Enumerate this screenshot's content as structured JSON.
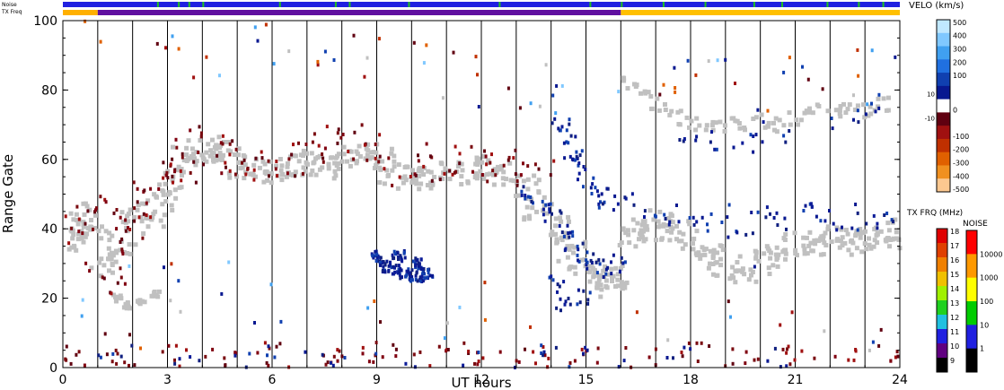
{
  "chart_data": {
    "type": "heatmap",
    "title": "",
    "xlabel": "UT hours",
    "ylabel": "Range Gate",
    "xlim": [
      0,
      24
    ],
    "ylim": [
      0,
      100
    ],
    "x_ticks": [
      "0",
      "3",
      "6",
      "9",
      "12",
      "15",
      "18",
      "21",
      "24"
    ],
    "x_tick_values": [
      0,
      3,
      6,
      9,
      12,
      15,
      18,
      21,
      24
    ],
    "y_ticks": [
      "0",
      "20",
      "40",
      "60",
      "80",
      "100"
    ],
    "y_tick_values": [
      0,
      20,
      40,
      60,
      80,
      100
    ],
    "vertical_gridlines_hours": [
      1,
      2,
      3,
      4,
      5,
      6,
      7,
      8,
      9,
      10,
      11,
      12,
      13,
      14,
      15,
      16,
      17,
      18,
      19,
      20,
      21,
      22,
      23
    ],
    "ground_scatter_color": "#c0c0c0",
    "noise_bar_label": "Noise",
    "txfreq_bar_label": "TX Freq",
    "noise_bar": {
      "base_color": "#2020e0",
      "accent_color": "#20c020",
      "accent_hours": [
        2.7,
        3.3,
        3.6,
        4.0,
        6.2,
        7.8,
        8.2,
        9.9,
        12.5,
        15.1,
        16.0,
        17.2,
        18.4,
        19.8,
        20.6,
        21.9,
        22.8,
        23.5
      ]
    },
    "txfreq_bar": {
      "segments": [
        {
          "start": 0,
          "end": 1,
          "color": "#ffb000"
        },
        {
          "start": 1,
          "end": 16,
          "color": "#6010a0"
        },
        {
          "start": 16,
          "end": 24,
          "color": "#ffc000"
        }
      ]
    },
    "velocity_scale": {
      "title": "VELO (km/s)",
      "labels": [
        "500",
        "400",
        "300",
        "200",
        "100",
        "10",
        "0",
        "-10",
        "-100",
        "-200",
        "-300",
        "-400",
        "-500"
      ],
      "colors": [
        "#c0e8ff",
        "#80c8ff",
        "#40a0f0",
        "#2070e0",
        "#1040b0",
        "#081890",
        "#ffffff",
        "#600010",
        "#a01010",
        "#c03000",
        "#e06000",
        "#f09020",
        "#fcc890"
      ]
    },
    "txfreq_scale": {
      "title": "TX FRQ (MHz)",
      "labels": [
        "18",
        "17",
        "16",
        "15",
        "14",
        "13",
        "12",
        "11",
        "10",
        "9"
      ],
      "colors": [
        "#e00000",
        "#e04000",
        "#f08000",
        "#f0c000",
        "#a0f000",
        "#20d020",
        "#20c0e0",
        "#2020e0",
        "#600080",
        "#000000"
      ]
    },
    "noise_scale": {
      "title": "NOISE",
      "labels": [
        "10000",
        "1000",
        "100",
        "10",
        "1"
      ],
      "colors": [
        "#ff0000",
        "#ff9900",
        "#ffff00",
        "#00cc00",
        "#2020e0",
        "#000000"
      ]
    },
    "regions": [
      {
        "kind": "ground",
        "points": [
          [
            0.05,
            36
          ],
          [
            0.3,
            40
          ],
          [
            0.6,
            44
          ],
          [
            0.9,
            38
          ],
          [
            1.2,
            30
          ],
          [
            1.6,
            34
          ],
          [
            2.0,
            42
          ],
          [
            2.4,
            44
          ],
          [
            2.8,
            47
          ],
          [
            3.1,
            54
          ],
          [
            3.5,
            60
          ],
          [
            3.9,
            62
          ],
          [
            4.3,
            63
          ],
          [
            4.7,
            62
          ],
          [
            5.1,
            58
          ],
          [
            5.5,
            56
          ],
          [
            6.0,
            57
          ],
          [
            6.5,
            59
          ],
          [
            7.0,
            59
          ],
          [
            7.5,
            58
          ],
          [
            8.0,
            60
          ],
          [
            8.5,
            61
          ],
          [
            9.0,
            60
          ],
          [
            9.4,
            56
          ],
          [
            9.8,
            55
          ],
          [
            10.5,
            55
          ],
          [
            11.2,
            56
          ],
          [
            11.8,
            58
          ],
          [
            12.2,
            58
          ],
          [
            12.6,
            56
          ],
          [
            13.2,
            52
          ],
          [
            13.6,
            46
          ],
          [
            14.0,
            40
          ],
          [
            14.5,
            34
          ],
          [
            14.9,
            28
          ],
          [
            15.3,
            26
          ],
          [
            15.6,
            24
          ],
          [
            15.9,
            26
          ],
          [
            16.2,
            38
          ],
          [
            16.6,
            40
          ],
          [
            17.0,
            42
          ],
          [
            17.5,
            40
          ],
          [
            18.0,
            36
          ],
          [
            18.5,
            32
          ],
          [
            19.0,
            30
          ],
          [
            19.5,
            28
          ],
          [
            20.0,
            30
          ],
          [
            20.5,
            34
          ],
          [
            21.0,
            36
          ],
          [
            21.5,
            36
          ],
          [
            22.0,
            38
          ],
          [
            22.5,
            37
          ],
          [
            23.0,
            36
          ],
          [
            23.5,
            38
          ],
          [
            23.9,
            40
          ]
        ],
        "count": 14,
        "spread": 0.45
      },
      {
        "kind": "ground",
        "points": [
          [
            16.2,
            82
          ],
          [
            16.6,
            80
          ],
          [
            17.0,
            76
          ],
          [
            17.5,
            72
          ],
          [
            18.0,
            70
          ],
          [
            18.5,
            70
          ],
          [
            19.0,
            70
          ],
          [
            19.5,
            70
          ],
          [
            20.0,
            71
          ],
          [
            20.5,
            70
          ],
          [
            21.0,
            72
          ],
          [
            21.5,
            74
          ],
          [
            22.0,
            74
          ],
          [
            22.5,
            75
          ],
          [
            23.0,
            74
          ],
          [
            23.5,
            76
          ]
        ],
        "count": 6,
        "spread": 0.25
      },
      {
        "kind": "ground",
        "points": [
          [
            1.5,
            20
          ],
          [
            1.8,
            18
          ],
          [
            2.2,
            19
          ],
          [
            2.6,
            21
          ]
        ],
        "count": 8,
        "spread": 0.12
      },
      {
        "kind": "neg",
        "points": [
          [
            0.1,
            38
          ],
          [
            0.4,
            42
          ],
          [
            0.8,
            48
          ],
          [
            1.2,
            30
          ],
          [
            1.3,
            26
          ],
          [
            1.6,
            40
          ],
          [
            1.9,
            46
          ],
          [
            2.2,
            40
          ],
          [
            2.5,
            50
          ],
          [
            2.7,
            55
          ],
          [
            3.0,
            58
          ],
          [
            3.3,
            57
          ],
          [
            3.7,
            63
          ],
          [
            4.1,
            65
          ],
          [
            4.5,
            62
          ],
          [
            4.9,
            60
          ],
          [
            5.3,
            58
          ],
          [
            5.8,
            57
          ],
          [
            6.4,
            60
          ],
          [
            7.0,
            60
          ],
          [
            7.6,
            64
          ],
          [
            8.0,
            66
          ],
          [
            8.5,
            64
          ],
          [
            9.0,
            60
          ],
          [
            9.6,
            57
          ],
          [
            10.2,
            58
          ],
          [
            10.8,
            60
          ],
          [
            11.4,
            60
          ],
          [
            12.0,
            58
          ],
          [
            12.6,
            58
          ],
          [
            13.2,
            56
          ],
          [
            13.6,
            55
          ]
        ],
        "count": 6,
        "spread": 0.6
      },
      {
        "kind": "neg",
        "points": [
          [
            0.2,
            2
          ],
          [
            1.5,
            1
          ],
          [
            3.0,
            2
          ],
          [
            4.5,
            1
          ],
          [
            6.0,
            3
          ],
          [
            7.5,
            2
          ],
          [
            9.0,
            3
          ],
          [
            10.5,
            2
          ],
          [
            12.0,
            3
          ],
          [
            13.5,
            2
          ],
          [
            15.0,
            3
          ],
          [
            16.5,
            2
          ],
          [
            18.0,
            3
          ],
          [
            19.5,
            1
          ],
          [
            21.0,
            2
          ],
          [
            22.5,
            1
          ],
          [
            23.8,
            2
          ]
        ],
        "count": 10,
        "spread": 0.55
      },
      {
        "kind": "pos",
        "points": [
          [
            9.0,
            32
          ],
          [
            9.2,
            29
          ],
          [
            9.5,
            28
          ],
          [
            9.8,
            27
          ],
          [
            10.1,
            26
          ],
          [
            10.4,
            27
          ],
          [
            10.2,
            30
          ],
          [
            9.6,
            32
          ]
        ],
        "count": 18,
        "spread": 0.2
      },
      {
        "kind": "pos",
        "points": [
          [
            13.4,
            50
          ],
          [
            13.7,
            47
          ],
          [
            14.0,
            44
          ],
          [
            14.3,
            40
          ],
          [
            14.6,
            36
          ],
          [
            14.9,
            32
          ],
          [
            15.2,
            30
          ],
          [
            15.5,
            28
          ],
          [
            15.8,
            30
          ],
          [
            14.2,
            70
          ],
          [
            14.4,
            66
          ],
          [
            14.6,
            62
          ],
          [
            14.8,
            58
          ],
          [
            15.0,
            54
          ],
          [
            15.3,
            50
          ],
          [
            15.6,
            47
          ],
          [
            14.1,
            24
          ],
          [
            14.4,
            18
          ],
          [
            14.8,
            20
          ]
        ],
        "count": 7,
        "spread": 0.3
      },
      {
        "kind": "pos",
        "points": [
          [
            16.3,
            48
          ],
          [
            17.0,
            46
          ],
          [
            17.6,
            44
          ],
          [
            18.2,
            42
          ],
          [
            18.8,
            44
          ],
          [
            19.4,
            40
          ],
          [
            20.0,
            44
          ],
          [
            20.6,
            42
          ],
          [
            21.2,
            46
          ],
          [
            21.8,
            44
          ],
          [
            22.4,
            42
          ],
          [
            23.0,
            44
          ],
          [
            23.6,
            42
          ],
          [
            18.0,
            68
          ],
          [
            18.8,
            66
          ],
          [
            19.6,
            64
          ],
          [
            20.4,
            68
          ],
          [
            22.4,
            72
          ],
          [
            23.2,
            76
          ]
        ],
        "count": 5,
        "spread": 0.4
      },
      {
        "kind": "pos",
        "points": [
          [
            1.5,
            2
          ],
          [
            3.5,
            1
          ],
          [
            5.5,
            2
          ],
          [
            7.5,
            3
          ],
          [
            9.5,
            2
          ],
          [
            11.5,
            1
          ],
          [
            13.5,
            3
          ],
          [
            14.5,
            1
          ],
          [
            15.5,
            2
          ],
          [
            17.5,
            1
          ],
          [
            20.5,
            2
          ]
        ],
        "count": 6,
        "spread": 0.6
      },
      {
        "kind": "mixed",
        "points": [
          [
            0.5,
            80
          ],
          [
            1.2,
            95
          ],
          [
            1.8,
            100
          ],
          [
            2.5,
            100
          ],
          [
            3.2,
            90
          ],
          [
            4.0,
            88
          ],
          [
            5.0,
            98
          ],
          [
            6.2,
            96
          ],
          [
            7.0,
            85
          ],
          [
            8.0,
            82
          ],
          [
            9.2,
            90
          ],
          [
            10.0,
            95
          ],
          [
            11.0,
            85
          ],
          [
            12.0,
            82
          ],
          [
            13.0,
            80
          ],
          [
            14.0,
            78
          ],
          [
            15.0,
            75
          ],
          [
            16.5,
            86
          ],
          [
            17.5,
            84
          ],
          [
            18.5,
            86
          ],
          [
            19.5,
            88
          ],
          [
            20.5,
            82
          ],
          [
            21.5,
            86
          ],
          [
            22.5,
            80
          ],
          [
            23.2,
            88
          ],
          [
            23.7,
            92
          ],
          [
            3.5,
            22
          ],
          [
            4.0,
            26
          ],
          [
            2.5,
            30
          ],
          [
            0.3,
            12
          ],
          [
            2.0,
            10
          ],
          [
            6.0,
            18
          ],
          [
            8.8,
            14
          ],
          [
            11.5,
            12
          ],
          [
            13.0,
            18
          ],
          [
            17.2,
            12
          ],
          [
            19.0,
            22
          ],
          [
            21.0,
            14
          ],
          [
            22.8,
            10
          ]
        ],
        "count": 3,
        "spread": 1.0
      }
    ]
  }
}
